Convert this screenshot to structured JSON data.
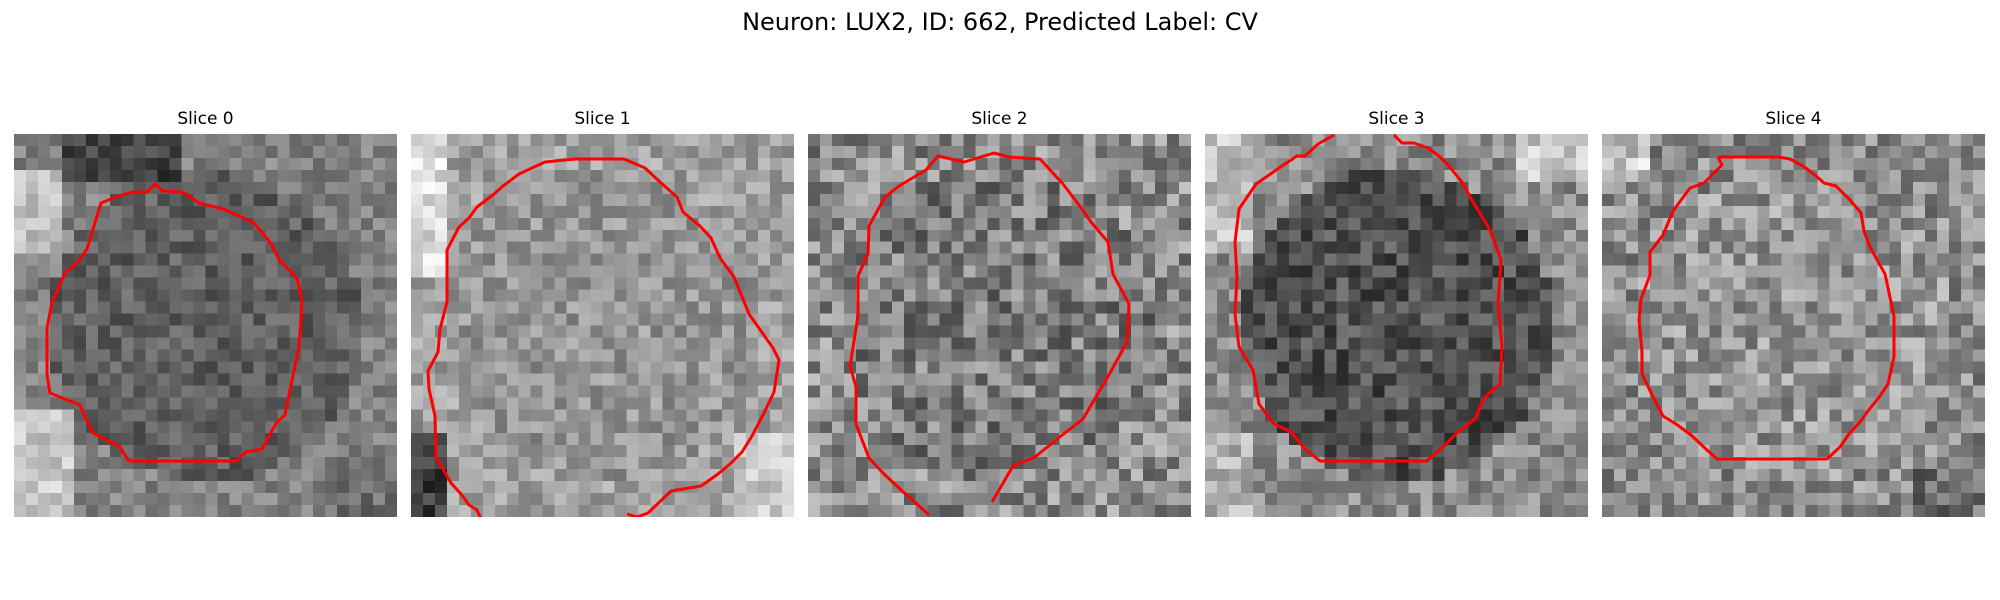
{
  "figure": {
    "title": "Neuron: LUX2, ID: 662, Predicted Label: CV"
  },
  "colors": {
    "contour": "#ff0000",
    "background": "#ffffff"
  },
  "slices": [
    {
      "title": "Slice 0"
    },
    {
      "title": "Slice 1"
    },
    {
      "title": "Slice 2"
    },
    {
      "title": "Slice 3"
    },
    {
      "title": "Slice 4"
    }
  ]
}
